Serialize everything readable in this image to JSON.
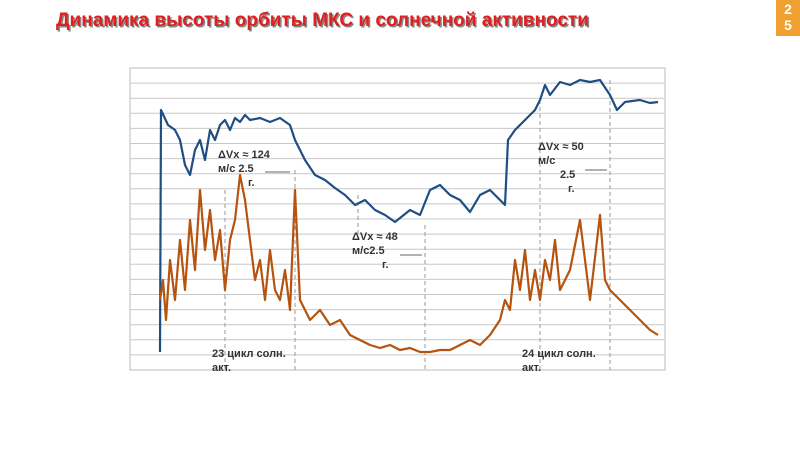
{
  "page_number": "25",
  "chart_data": {
    "type": "line",
    "title": "Динамика высоты орбиты МКС и солнечной активности",
    "xlim": [
      0,
      535
    ],
    "ylim": [
      0,
      302
    ],
    "series": [
      {
        "color": "#1f4e85",
        "x": [
          30,
          31,
          38,
          45,
          50,
          55,
          60,
          65,
          70,
          75,
          80,
          85,
          90,
          95,
          100,
          105,
          110,
          115,
          120,
          130,
          140,
          150,
          160,
          165,
          175,
          185,
          195,
          205,
          215,
          225,
          235,
          245,
          255,
          265,
          270,
          280,
          290,
          300,
          310,
          320,
          330,
          340,
          350,
          360,
          370,
          375,
          378,
          385,
          395,
          405,
          410,
          415,
          420,
          430,
          440,
          450,
          460,
          470,
          480,
          487,
          495,
          510,
          520,
          528
        ],
        "values": [
          18,
          260,
          245,
          240,
          230,
          205,
          195,
          220,
          230,
          210,
          240,
          230,
          245,
          250,
          240,
          252,
          248,
          255,
          250,
          252,
          248,
          252,
          245,
          230,
          210,
          195,
          190,
          182,
          175,
          165,
          170,
          160,
          155,
          148,
          152,
          160,
          155,
          180,
          185,
          175,
          170,
          158,
          175,
          180,
          170,
          165,
          230,
          240,
          250,
          260,
          270,
          285,
          275,
          288,
          285,
          290,
          288,
          290,
          275,
          260,
          268,
          270,
          267,
          268
        ]
      },
      {
        "color": "#b5530f",
        "x": [
          30,
          33,
          36,
          40,
          45,
          50,
          55,
          60,
          65,
          70,
          75,
          80,
          85,
          90,
          95,
          100,
          105,
          110,
          115,
          120,
          125,
          130,
          135,
          140,
          145,
          150,
          155,
          160,
          165,
          170,
          180,
          190,
          200,
          210,
          220,
          230,
          240,
          250,
          260,
          270,
          280,
          290,
          300,
          310,
          320,
          330,
          340,
          350,
          360,
          370,
          375,
          380,
          385,
          390,
          395,
          400,
          405,
          410,
          415,
          420,
          425,
          430,
          440,
          450,
          455,
          460,
          470,
          475,
          480,
          490,
          500,
          510,
          520,
          528
        ],
        "values": [
          70,
          90,
          50,
          110,
          70,
          130,
          80,
          150,
          100,
          180,
          120,
          160,
          110,
          140,
          80,
          130,
          150,
          195,
          170,
          130,
          90,
          110,
          70,
          120,
          80,
          70,
          100,
          60,
          180,
          70,
          50,
          60,
          45,
          50,
          35,
          30,
          25,
          22,
          25,
          20,
          22,
          18,
          18,
          20,
          20,
          25,
          30,
          25,
          35,
          50,
          70,
          60,
          110,
          80,
          120,
          70,
          100,
          70,
          110,
          90,
          130,
          80,
          100,
          150,
          110,
          70,
          155,
          90,
          80,
          70,
          60,
          50,
          40,
          35
        ]
      }
    ],
    "annotations": [
      {
        "lines": [
          "ΔVx ≈ 124",
          "м/с 2.5",
          "г."
        ]
      },
      {
        "lines": [
          "ΔVx ≈ 48",
          "м/с2.5",
          "г."
        ]
      },
      {
        "lines": [
          "ΔVx ≈ 50",
          "м/с",
          "2.5",
          "г."
        ]
      },
      {
        "lines": [
          "23 цикл солн.",
          "акт."
        ]
      },
      {
        "lines": [
          "24 цикл солн.",
          "акт."
        ]
      }
    ]
  }
}
